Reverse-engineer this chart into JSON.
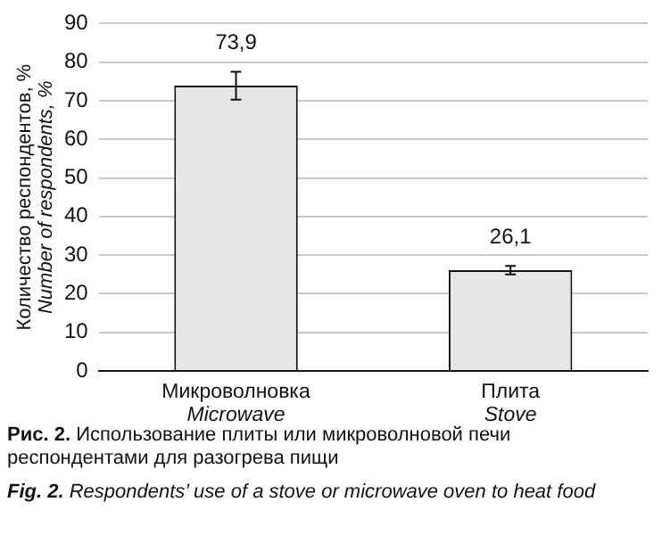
{
  "chart_data": {
    "type": "bar",
    "categories": [
      "Микроволновка\nMicrowave",
      "Плита\nStove"
    ],
    "values": [
      73.9,
      26.1
    ],
    "errors": [
      3.6,
      1.1
    ],
    "color": "#e6e6e6",
    "ylabel": "Количество респондентов, %\nNumber of respondents, %",
    "ylim": [
      0,
      90
    ],
    "yticks": [
      0,
      10,
      20,
      30,
      40,
      50,
      60,
      70,
      80,
      90
    ],
    "value_labels": [
      "73,9",
      "26,1"
    ],
    "grid": "y",
    "legend": false,
    "annotations": [
      "Рис. 2. Использование плиты или микроволновой печи респондентами для разогрева пищи",
      "Fig. 2. Respondents’ use of a stove or microwave oven to heat food"
    ]
  }
}
